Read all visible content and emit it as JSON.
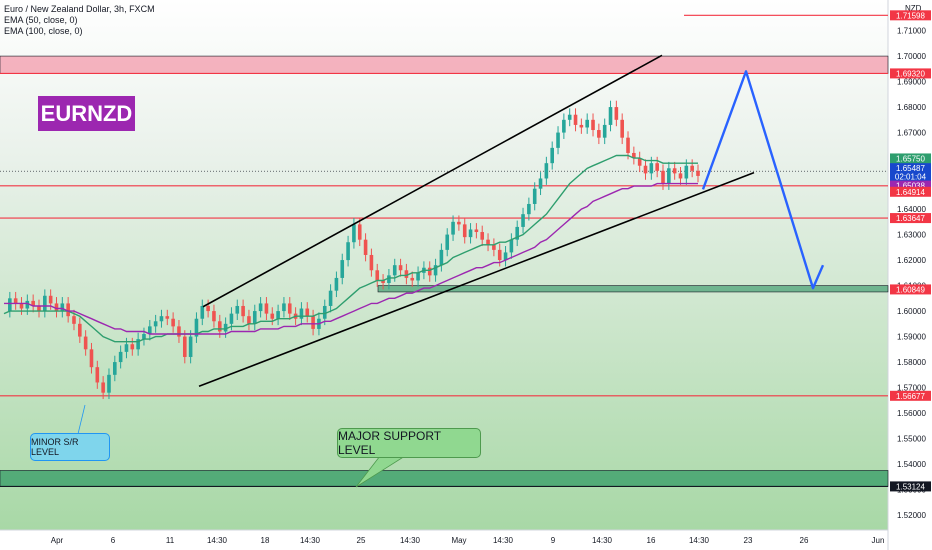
{
  "legend": {
    "symbol": "Euro / New Zealand Dollar, 3h, FXCM",
    "ema50": "EMA (50, close, 0)",
    "ema100": "EMA (100, close, 0)"
  },
  "currency": "NZD",
  "brand": "EURNZD",
  "callouts": {
    "minor": "MINOR S/R LEVEL",
    "major": "MAJOR SUPPORT LEVEL"
  },
  "colors": {
    "up": "#26a69a",
    "down": "#ef5350",
    "ema50": "#2e9e6e",
    "ema100": "#9c27b0",
    "level": "#f23645",
    "projection": "#2962ff"
  },
  "chart_data": {
    "type": "candlestick",
    "ylim": [
      1.52,
      1.72
    ],
    "y_ticks": [
      "1.71000",
      "1.70000",
      "1.69000",
      "1.68000",
      "1.67000",
      "1.66000",
      "1.65000",
      "1.64000",
      "1.63000",
      "1.62000",
      "1.61000",
      "1.60000",
      "1.59000",
      "1.58000",
      "1.57000",
      "1.56000",
      "1.55000",
      "1.54000",
      "1.53000",
      "1.52000"
    ],
    "x_ticks": [
      "Apr",
      "6",
      "11",
      "14:30",
      "18",
      "14:30",
      "25",
      "14:30",
      "May",
      "14:30",
      "9",
      "14:30",
      "16",
      "14:30",
      "23",
      "26",
      "Jun"
    ],
    "price_labels": [
      {
        "text": "1.71598",
        "value": 1.71598,
        "kind": "level"
      },
      {
        "text": "1.69320",
        "value": 1.6932,
        "kind": "level"
      },
      {
        "text": "1.65750",
        "value": 1.6575,
        "kind": "ema50"
      },
      {
        "text": "1.65487",
        "value": 1.65487,
        "kind": "price"
      },
      {
        "text": "02:01:04",
        "value": 1.65387,
        "kind": "timer"
      },
      {
        "text": "1.65038",
        "value": 1.65038,
        "kind": "ema100"
      },
      {
        "text": "1.64914",
        "value": 1.64914,
        "kind": "level"
      },
      {
        "text": "1.63647",
        "value": 1.63647,
        "kind": "level"
      },
      {
        "text": "1.60849",
        "value": 1.60849,
        "kind": "level"
      },
      {
        "text": "1.56677",
        "value": 1.56677,
        "kind": "level"
      },
      {
        "text": "1.53124",
        "value": 1.53124,
        "kind": "dark"
      }
    ],
    "horizontal_levels": [
      1.71598,
      1.6932,
      1.64914,
      1.63647,
      1.56677,
      1.53124
    ],
    "zones": [
      {
        "name": "resistance-zone",
        "from": 1.6932,
        "to": 1.7,
        "color": "#f4a0b0"
      },
      {
        "name": "support-zone-mid",
        "from": 1.6075,
        "to": 1.61,
        "color": "#56a87e"
      },
      {
        "name": "support-zone-major",
        "from": 1.5312,
        "to": 1.5375,
        "color": "#3c9f6a"
      }
    ],
    "close_path": [
      1.6,
      1.605,
      1.603,
      1.601,
      1.604,
      1.602,
      1.6,
      1.606,
      1.603,
      1.6,
      1.603,
      1.598,
      1.595,
      1.59,
      1.585,
      1.578,
      1.572,
      1.568,
      1.575,
      1.58,
      1.584,
      1.587,
      1.585,
      1.589,
      1.591,
      1.594,
      1.596,
      1.598,
      1.597,
      1.594,
      1.59,
      1.582,
      1.59,
      1.597,
      1.602,
      1.6,
      1.596,
      1.592,
      1.595,
      1.599,
      1.602,
      1.598,
      1.595,
      1.6,
      1.603,
      1.599,
      1.597,
      1.6,
      1.603,
      1.599,
      1.597,
      1.601,
      1.598,
      1.593,
      1.597,
      1.602,
      1.608,
      1.613,
      1.62,
      1.627,
      1.634,
      1.628,
      1.622,
      1.616,
      1.612,
      1.611,
      1.614,
      1.618,
      1.616,
      1.613,
      1.612,
      1.615,
      1.617,
      1.614,
      1.618,
      1.624,
      1.63,
      1.635,
      1.634,
      1.629,
      1.632,
      1.631,
      1.628,
      1.626,
      1.624,
      1.62,
      1.623,
      1.628,
      1.633,
      1.638,
      1.642,
      1.648,
      1.652,
      1.658,
      1.664,
      1.67,
      1.675,
      1.677,
      1.673,
      1.672,
      1.675,
      1.671,
      1.668,
      1.673,
      1.68,
      1.675,
      1.668,
      1.662,
      1.66,
      1.657,
      1.654,
      1.658,
      1.655,
      1.65,
      1.656,
      1.654,
      1.652,
      1.657,
      1.655,
      1.653
    ],
    "ema50": [
      1.599,
      1.6,
      1.6,
      1.6,
      1.6,
      1.6,
      1.6,
      1.6,
      1.6,
      1.6,
      1.6,
      1.6,
      1.599,
      1.598,
      1.596,
      1.594,
      1.592,
      1.59,
      1.589,
      1.588,
      1.588,
      1.588,
      1.588,
      1.588,
      1.589,
      1.589,
      1.59,
      1.59,
      1.591,
      1.591,
      1.591,
      1.591,
      1.591,
      1.591,
      1.592,
      1.592,
      1.593,
      1.593,
      1.593,
      1.594,
      1.594,
      1.594,
      1.595,
      1.595,
      1.596,
      1.596,
      1.596,
      1.597,
      1.597,
      1.597,
      1.598,
      1.598,
      1.598,
      1.598,
      1.599,
      1.599,
      1.6,
      1.601,
      1.603,
      1.605,
      1.607,
      1.609,
      1.61,
      1.611,
      1.612,
      1.612,
      1.613,
      1.613,
      1.614,
      1.614,
      1.615,
      1.615,
      1.616,
      1.616,
      1.617,
      1.618,
      1.619,
      1.621,
      1.622,
      1.623,
      1.624,
      1.625,
      1.626,
      1.626,
      1.626,
      1.627,
      1.627,
      1.628,
      1.629,
      1.63,
      1.632,
      1.634,
      1.636,
      1.638,
      1.641,
      1.644,
      1.647,
      1.65,
      1.652,
      1.654,
      1.656,
      1.657,
      1.658,
      1.659,
      1.66,
      1.661,
      1.661,
      1.661,
      1.66,
      1.66,
      1.659,
      1.659,
      1.659,
      1.658,
      1.658,
      1.658,
      1.658,
      1.658,
      1.658,
      1.658
    ],
    "ema100": [
      1.603,
      1.603,
      1.603,
      1.603,
      1.603,
      1.602,
      1.602,
      1.602,
      1.602,
      1.601,
      1.601,
      1.6,
      1.6,
      1.599,
      1.598,
      1.597,
      1.596,
      1.595,
      1.594,
      1.593,
      1.593,
      1.592,
      1.592,
      1.592,
      1.592,
      1.591,
      1.591,
      1.591,
      1.591,
      1.591,
      1.591,
      1.591,
      1.591,
      1.591,
      1.591,
      1.591,
      1.591,
      1.591,
      1.591,
      1.592,
      1.592,
      1.592,
      1.592,
      1.592,
      1.593,
      1.593,
      1.593,
      1.593,
      1.594,
      1.594,
      1.594,
      1.595,
      1.595,
      1.595,
      1.595,
      1.596,
      1.596,
      1.597,
      1.598,
      1.599,
      1.6,
      1.601,
      1.602,
      1.603,
      1.603,
      1.604,
      1.605,
      1.605,
      1.606,
      1.607,
      1.607,
      1.608,
      1.609,
      1.609,
      1.61,
      1.611,
      1.612,
      1.613,
      1.614,
      1.615,
      1.616,
      1.617,
      1.617,
      1.618,
      1.619,
      1.619,
      1.62,
      1.621,
      1.622,
      1.623,
      1.624,
      1.625,
      1.627,
      1.628,
      1.63,
      1.632,
      1.634,
      1.636,
      1.638,
      1.64,
      1.641,
      1.643,
      1.644,
      1.645,
      1.646,
      1.647,
      1.648,
      1.648,
      1.649,
      1.649,
      1.649,
      1.649,
      1.65,
      1.65,
      1.65,
      1.65,
      1.65,
      1.65,
      1.65,
      1.65
    ],
    "channel": {
      "upper": [
        {
          "x": "11",
          "y": 1.6017
        },
        {
          "x": "May",
          "y": 1.7003
        }
      ],
      "lower": [
        {
          "x": "11",
          "y": 1.5705
        },
        {
          "x": "May",
          "y": 1.6543
        }
      ]
    },
    "projection": [
      1.6477,
      1.694,
      1.609,
      1.618
    ]
  }
}
